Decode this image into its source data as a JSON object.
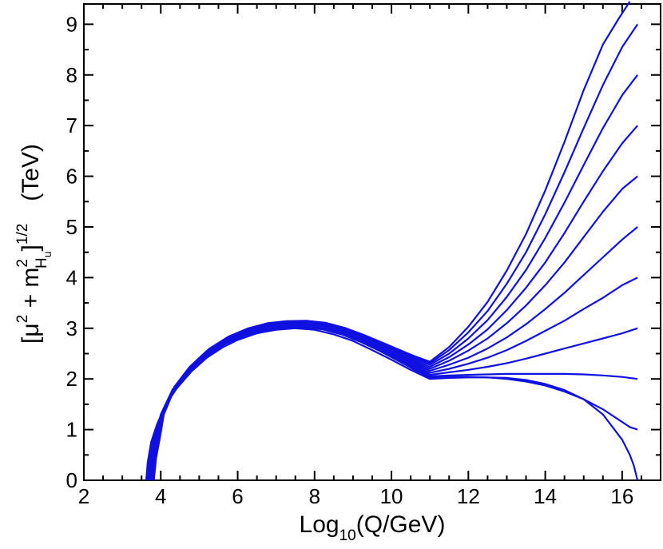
{
  "chart_data": {
    "type": "line",
    "xlabel": {
      "main": "Log",
      "sub": "10",
      "rest": "(Q/GeV)"
    },
    "ylabel": {
      "open": "[",
      "mu": "μ",
      "sq1": "2",
      "plus": " + m",
      "sq2": "2",
      "sub1": "H",
      "sub2": "u",
      "close": "]",
      "power": "1/2",
      "units": "(TeV)"
    },
    "xlim": [
      2,
      17
    ],
    "ylim": [
      0,
      9.4
    ],
    "x_ticks": [
      2,
      4,
      6,
      8,
      10,
      12,
      14,
      16
    ],
    "y_ticks": [
      0,
      1,
      2,
      3,
      4,
      5,
      6,
      7,
      8,
      9
    ],
    "x_minor_step": 0.5,
    "y_minor_step": 0.5,
    "grid": false,
    "line_color": "#1010e0",
    "series": [
      {
        "x": [
          3.62,
          3.66,
          3.75,
          3.9,
          4.1,
          4.4,
          4.8,
          5.2,
          5.6,
          6.0,
          6.5,
          7.0,
          7.5,
          8.0,
          8.5,
          9.0,
          9.5,
          10.0,
          10.5,
          11.0,
          11.5,
          12.0,
          12.5,
          13.0,
          13.5,
          14.0,
          14.5,
          15.0,
          15.5,
          16.0,
          16.1,
          16.2,
          16.3,
          16.35,
          16.4
        ],
        "y": [
          0.0,
          0.35,
          0.75,
          1.1,
          1.45,
          1.8,
          2.15,
          2.42,
          2.62,
          2.77,
          2.9,
          2.97,
          3.0,
          2.97,
          2.88,
          2.75,
          2.57,
          2.38,
          2.18,
          2.0,
          2.02,
          2.03,
          2.03,
          2.02,
          1.98,
          1.9,
          1.78,
          1.6,
          1.3,
          0.8,
          0.65,
          0.5,
          0.3,
          0.15,
          0.0
        ]
      },
      {
        "x": [
          3.64,
          3.7,
          3.8,
          4.0,
          4.3,
          4.7,
          5.2,
          5.7,
          6.2,
          6.7,
          7.2,
          7.7,
          8.2,
          8.7,
          9.2,
          9.7,
          10.2,
          10.6,
          11.0,
          11.5,
          12.0,
          12.5,
          13.0,
          13.5,
          14.0,
          14.5,
          15.0,
          15.5,
          16.0,
          16.2,
          16.4
        ],
        "y": [
          0.0,
          0.45,
          0.85,
          1.25,
          1.7,
          2.1,
          2.45,
          2.7,
          2.86,
          2.96,
          3.01,
          3.02,
          2.98,
          2.88,
          2.73,
          2.55,
          2.35,
          2.18,
          2.02,
          2.04,
          2.04,
          2.03,
          2.0,
          1.95,
          1.87,
          1.75,
          1.6,
          1.4,
          1.15,
          1.05,
          1.0
        ]
      },
      {
        "x": [
          3.66,
          3.72,
          3.82,
          4.0,
          4.3,
          4.7,
          5.2,
          5.7,
          6.2,
          6.7,
          7.2,
          7.7,
          8.2,
          8.7,
          9.2,
          9.7,
          10.2,
          10.6,
          11.0,
          11.5,
          12.0,
          12.5,
          13.0,
          13.5,
          14.0,
          14.5,
          15.0,
          15.5,
          16.0,
          16.4
        ],
        "y": [
          0.0,
          0.45,
          0.85,
          1.27,
          1.72,
          2.12,
          2.47,
          2.72,
          2.88,
          2.98,
          3.03,
          3.04,
          3.0,
          2.9,
          2.76,
          2.58,
          2.38,
          2.21,
          2.05,
          2.07,
          2.08,
          2.09,
          2.1,
          2.1,
          2.1,
          2.1,
          2.09,
          2.07,
          2.04,
          2.0
        ]
      },
      {
        "x": [
          3.68,
          3.74,
          3.84,
          4.0,
          4.3,
          4.7,
          5.2,
          5.7,
          6.2,
          6.7,
          7.2,
          7.7,
          8.2,
          8.7,
          9.2,
          9.7,
          10.2,
          10.6,
          11.0,
          11.5,
          12.0,
          12.5,
          13.0,
          13.5,
          14.0,
          14.5,
          15.0,
          15.5,
          16.0,
          16.4
        ],
        "y": [
          0.0,
          0.45,
          0.85,
          1.28,
          1.74,
          2.14,
          2.49,
          2.74,
          2.9,
          3.0,
          3.05,
          3.06,
          3.02,
          2.92,
          2.78,
          2.6,
          2.41,
          2.24,
          2.08,
          2.13,
          2.18,
          2.24,
          2.31,
          2.4,
          2.5,
          2.6,
          2.7,
          2.8,
          2.9,
          3.0
        ]
      },
      {
        "x": [
          3.7,
          3.76,
          3.86,
          4.0,
          4.3,
          4.7,
          5.2,
          5.7,
          6.2,
          6.7,
          7.2,
          7.7,
          8.2,
          8.7,
          9.2,
          9.7,
          10.2,
          10.6,
          11.0,
          11.5,
          12.0,
          12.5,
          13.0,
          13.5,
          14.0,
          14.5,
          15.0,
          15.5,
          16.0,
          16.4
        ],
        "y": [
          0.0,
          0.45,
          0.85,
          1.29,
          1.76,
          2.16,
          2.51,
          2.76,
          2.92,
          3.02,
          3.07,
          3.08,
          3.04,
          2.94,
          2.8,
          2.63,
          2.44,
          2.27,
          2.12,
          2.2,
          2.3,
          2.42,
          2.57,
          2.75,
          2.95,
          3.15,
          3.38,
          3.6,
          3.85,
          4.0
        ]
      },
      {
        "x": [
          3.72,
          3.78,
          3.88,
          4.0,
          4.3,
          4.7,
          5.2,
          5.7,
          6.2,
          6.7,
          7.2,
          7.7,
          8.2,
          8.7,
          9.2,
          9.7,
          10.2,
          10.6,
          11.0,
          11.5,
          12.0,
          12.5,
          13.0,
          13.5,
          14.0,
          14.5,
          15.0,
          15.5,
          16.0,
          16.4
        ],
        "y": [
          0.0,
          0.45,
          0.85,
          1.3,
          1.78,
          2.18,
          2.53,
          2.78,
          2.94,
          3.04,
          3.09,
          3.1,
          3.06,
          2.96,
          2.82,
          2.65,
          2.46,
          2.3,
          2.16,
          2.28,
          2.42,
          2.6,
          2.82,
          3.08,
          3.38,
          3.7,
          4.05,
          4.4,
          4.75,
          5.0
        ]
      },
      {
        "x": [
          3.74,
          3.8,
          3.9,
          4.05,
          4.35,
          4.75,
          5.25,
          5.75,
          6.25,
          6.75,
          7.25,
          7.75,
          8.25,
          8.75,
          9.25,
          9.75,
          10.25,
          10.6,
          11.0,
          11.5,
          12.0,
          12.5,
          13.0,
          13.5,
          14.0,
          14.5,
          15.0,
          15.5,
          16.0,
          16.4
        ],
        "y": [
          0.0,
          0.45,
          0.85,
          1.33,
          1.81,
          2.21,
          2.56,
          2.8,
          2.96,
          3.06,
          3.1,
          3.11,
          3.07,
          2.97,
          2.82,
          2.65,
          2.47,
          2.33,
          2.2,
          2.36,
          2.56,
          2.8,
          3.1,
          3.45,
          3.85,
          4.3,
          4.8,
          5.3,
          5.75,
          6.0
        ]
      },
      {
        "x": [
          3.76,
          3.82,
          3.92,
          4.05,
          4.35,
          4.75,
          5.25,
          5.75,
          6.25,
          6.75,
          7.25,
          7.75,
          8.25,
          8.75,
          9.25,
          9.75,
          10.25,
          10.6,
          11.0,
          11.5,
          12.0,
          12.5,
          13.0,
          13.5,
          14.0,
          14.5,
          15.0,
          15.5,
          16.0,
          16.4
        ],
        "y": [
          0.0,
          0.45,
          0.85,
          1.33,
          1.82,
          2.22,
          2.57,
          2.81,
          2.97,
          3.07,
          3.11,
          3.12,
          3.08,
          2.98,
          2.84,
          2.67,
          2.5,
          2.36,
          2.24,
          2.43,
          2.68,
          2.98,
          3.36,
          3.8,
          4.3,
          4.88,
          5.5,
          6.1,
          6.65,
          7.0
        ]
      },
      {
        "x": [
          3.78,
          3.84,
          3.94,
          4.05,
          4.35,
          4.75,
          5.25,
          5.75,
          6.25,
          6.75,
          7.25,
          7.75,
          8.25,
          8.75,
          9.25,
          9.75,
          10.25,
          10.6,
          11.0,
          11.5,
          12.0,
          12.5,
          13.0,
          13.5,
          14.0,
          14.5,
          15.0,
          15.5,
          16.0,
          16.4
        ],
        "y": [
          0.0,
          0.45,
          0.85,
          1.33,
          1.83,
          2.23,
          2.58,
          2.82,
          2.98,
          3.08,
          3.12,
          3.13,
          3.09,
          2.99,
          2.85,
          2.69,
          2.52,
          2.39,
          2.28,
          2.5,
          2.8,
          3.16,
          3.62,
          4.15,
          4.78,
          5.48,
          6.22,
          6.95,
          7.6,
          8.0
        ]
      },
      {
        "x": [
          3.8,
          3.86,
          3.96,
          4.05,
          4.35,
          4.75,
          5.25,
          5.75,
          6.25,
          6.75,
          7.25,
          7.75,
          8.25,
          8.75,
          9.25,
          9.75,
          10.25,
          10.6,
          11.0,
          11.5,
          12.0,
          12.5,
          13.0,
          13.5,
          14.0,
          14.5,
          15.0,
          15.5,
          16.0,
          16.4
        ],
        "y": [
          0.0,
          0.45,
          0.85,
          1.3,
          1.84,
          2.24,
          2.59,
          2.83,
          2.99,
          3.09,
          3.13,
          3.14,
          3.1,
          3.0,
          2.86,
          2.7,
          2.54,
          2.42,
          2.31,
          2.57,
          2.92,
          3.34,
          3.88,
          4.5,
          5.25,
          6.08,
          6.95,
          7.8,
          8.55,
          9.0
        ]
      },
      {
        "x": [
          3.82,
          3.88,
          3.98,
          4.08,
          4.38,
          4.78,
          5.28,
          5.78,
          6.28,
          6.78,
          7.28,
          7.78,
          8.28,
          8.78,
          9.28,
          9.78,
          10.28,
          10.6,
          11.0,
          11.5,
          12.0,
          12.5,
          13.0,
          13.5,
          14.0,
          14.5,
          15.0,
          15.5,
          15.9,
          16.2
        ],
        "y": [
          0.0,
          0.45,
          0.85,
          1.3,
          1.85,
          2.25,
          2.6,
          2.84,
          3.0,
          3.1,
          3.14,
          3.15,
          3.11,
          3.01,
          2.87,
          2.71,
          2.55,
          2.45,
          2.34,
          2.63,
          3.03,
          3.52,
          4.14,
          4.86,
          5.72,
          6.68,
          7.7,
          8.6,
          9.1,
          9.45
        ]
      }
    ]
  }
}
